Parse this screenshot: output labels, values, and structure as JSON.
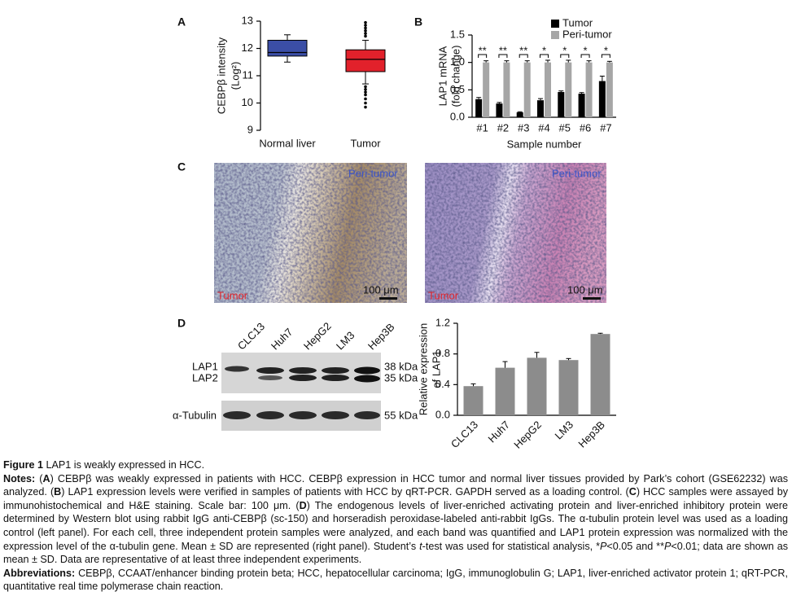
{
  "panel_labels": [
    "A",
    "B",
    "C",
    "D"
  ],
  "chart_data": [
    {
      "type": "box",
      "y_label": [
        "CEBPβ intensity",
        "(Log²)"
      ],
      "categories": [
        "Normal liver",
        "Tumor"
      ],
      "boxes": [
        {
          "color": "#3b4ea6",
          "whisker_low": 11.5,
          "q1": 11.72,
          "median": 11.85,
          "q3": 12.3,
          "whisker_high": 12.5,
          "outliers": []
        },
        {
          "color": "#e2212b",
          "whisker_low": 10.7,
          "q1": 11.15,
          "median": 11.6,
          "q3": 11.95,
          "whisker_high": 12.3,
          "outliers": [
            12.45,
            12.55,
            12.65,
            12.75,
            12.85,
            12.95,
            10.6,
            10.5,
            10.4,
            10.3,
            10.15,
            10.0,
            9.85
          ]
        }
      ],
      "ylim": [
        9,
        13
      ],
      "yticks": [
        9,
        10,
        11,
        12,
        13
      ]
    },
    {
      "type": "bar",
      "y_label": [
        "LAP1 mRNA",
        "(fold change)"
      ],
      "x_label": "Sample number",
      "categories": [
        "#1",
        "#2",
        "#3",
        "#4",
        "#5",
        "#6",
        "#7"
      ],
      "series": [
        {
          "name": "Tumor",
          "color": "#000000",
          "values": [
            0.33,
            0.25,
            0.09,
            0.31,
            0.46,
            0.43,
            0.66
          ],
          "errors": [
            0.03,
            0.02,
            0.01,
            0.03,
            0.02,
            0.02,
            0.09
          ]
        },
        {
          "name": "Peri-tumor",
          "color": "#a6a6a6",
          "values": [
            1.0,
            1.0,
            1.0,
            1.0,
            1.0,
            1.0,
            1.0
          ],
          "errors": [
            0.03,
            0.03,
            0.03,
            0.04,
            0.04,
            0.03,
            0.02
          ]
        }
      ],
      "annotations": [
        "**",
        "**",
        "**",
        "*",
        "*",
        "*",
        "*"
      ],
      "ylim": [
        0,
        1.5
      ],
      "yticks": [
        {
          "value": 0,
          "label": "0.0"
        },
        {
          "value": 0.5,
          "label": "0.5"
        },
        {
          "value": 1,
          "label": "1.0"
        },
        {
          "value": 1.5,
          "label": "1.5"
        }
      ],
      "legend": "top-right"
    },
    {
      "type": "bar",
      "y_label": [
        "Relative expression",
        "of LAP1"
      ],
      "categories": [
        "CLC13",
        "Huh7",
        "HepG2",
        "LM3",
        "Hep3B"
      ],
      "values": [
        0.38,
        0.62,
        0.75,
        0.72,
        1.06
      ],
      "errors": [
        0.03,
        0.08,
        0.07,
        0.02,
        0.01
      ],
      "color": "#8c8c8c",
      "ylim": [
        0,
        1.2
      ],
      "yticks": [
        {
          "value": 0,
          "label": "0.0"
        },
        {
          "value": 0.4,
          "label": "0.4"
        },
        {
          "value": 0.8,
          "label": "0.8"
        },
        {
          "value": 1.2,
          "label": "1.2"
        }
      ]
    }
  ],
  "histology": [
    {
      "top_label": "Peri-tumor",
      "bottom_label": "Tumor",
      "scale_bar": "100 μm"
    },
    {
      "top_label": "Peri-tumor",
      "bottom_label": "Tumor",
      "scale_bar": "100 μm"
    }
  ],
  "blot": {
    "lanes": [
      "CLC13",
      "Huh7",
      "HepG2",
      "LM3",
      "Hep3B"
    ],
    "bands": [
      "LAP1",
      "LAP2"
    ],
    "loading": "α-Tubulin",
    "sizes": [
      "38 kDa",
      "35 kDa",
      "55 kDa"
    ]
  },
  "caption": {
    "figure_label": "Figure 1",
    "title": "LAP1 is weakly expressed in HCC.",
    "notes_label": "Notes:",
    "notes": [
      "(",
      "A",
      ") CEBPβ was weakly expressed in patients with HCC. CEBPβ expression in HCC tumor and normal liver tissues provided by Park’s cohort (GSE62232) was analyzed. (",
      "B",
      ") LAP1 expression levels were verified in samples of patients with HCC by qRT-PCR. GAPDH served as a loading control. (",
      "C",
      ") HCC samples were assayed by immunohistochemical and H&E staining. Scale bar: 100 μm. (",
      "D",
      ") The endogenous levels of liver-enriched activating protein and liver-enriched inhibitory protein were determined by Western blot using rabbit IgG anti-CEBPβ (sc-150) and horseradish peroxidase-labeled anti-rabbit IgGs. The α-tubulin protein level was used as a loading control (left panel). For each cell, three independent protein samples were analyzed, and each band was quantified and LAP1 protein expression was normalized with the expression level of the α-tubulin gene. Mean ± SD are represented (right panel). Student’s ",
      "t",
      "-test was used for statistical analysis, *",
      "P",
      "<0.05 and **",
      "P",
      "<0.01; data are shown as mean ± SD. Data are representative of at least three independent experiments."
    ],
    "abbreviations_label": "Abbreviations:",
    "abbreviations": "CEBPβ, CCAAT/enhancer binding protein beta; HCC, hepatocellular carcinoma; IgG, immunoglobulin G; LAP1, liver-enriched activator protein 1; qRT-PCR, quantitative real time polymerase chain reaction."
  }
}
